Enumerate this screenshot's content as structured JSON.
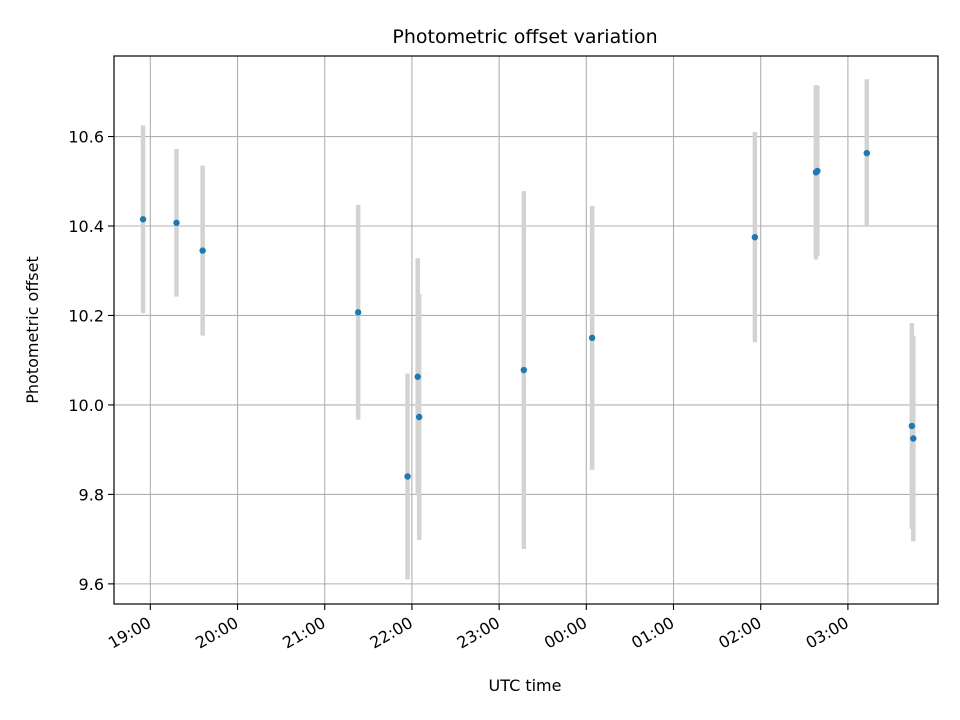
{
  "chart_data": {
    "type": "scatter",
    "title": "Photometric offset variation",
    "xlabel": "UTC time",
    "ylabel": "Photometric offset",
    "xlim": [
      "2024-01-01T18:35",
      "2024-01-02T04:02"
    ],
    "ylim": [
      9.555,
      10.78
    ],
    "grid": true,
    "x_ticks": [
      {
        "t": "2024-01-01T19:00",
        "label": "19:00"
      },
      {
        "t": "2024-01-01T20:00",
        "label": "20:00"
      },
      {
        "t": "2024-01-01T21:00",
        "label": "21:00"
      },
      {
        "t": "2024-01-01T22:00",
        "label": "22:00"
      },
      {
        "t": "2024-01-01T23:00",
        "label": "23:00"
      },
      {
        "t": "2024-01-02T00:00",
        "label": "00:00"
      },
      {
        "t": "2024-01-02T01:00",
        "label": "01:00"
      },
      {
        "t": "2024-01-02T02:00",
        "label": "02:00"
      },
      {
        "t": "2024-01-02T03:00",
        "label": "03:00"
      }
    ],
    "y_ticks": [
      {
        "v": 9.6,
        "label": "9.6"
      },
      {
        "v": 9.8,
        "label": "9.8"
      },
      {
        "v": 10.0,
        "label": "10.0"
      },
      {
        "v": 10.2,
        "label": "10.2"
      },
      {
        "v": 10.4,
        "label": "10.4"
      },
      {
        "v": 10.6,
        "label": "10.6"
      }
    ],
    "point_color": "#1f77b4",
    "errorbar_color": "#d3d3d3",
    "points": [
      {
        "t": "2024-01-01T18:55",
        "y": 10.415,
        "err": 0.21
      },
      {
        "t": "2024-01-01T19:18",
        "y": 10.407,
        "err": 0.165
      },
      {
        "t": "2024-01-01T19:36",
        "y": 10.345,
        "err": 0.19
      },
      {
        "t": "2024-01-01T21:23",
        "y": 10.207,
        "err": 0.24
      },
      {
        "t": "2024-01-01T21:57",
        "y": 9.84,
        "err": 0.23
      },
      {
        "t": "2024-01-01T22:04",
        "y": 10.063,
        "err": 0.265
      },
      {
        "t": "2024-01-01T22:05",
        "y": 9.973,
        "err": 0.275
      },
      {
        "t": "2024-01-01T23:17",
        "y": 10.078,
        "err": 0.4
      },
      {
        "t": "2024-01-02T00:04",
        "y": 10.15,
        "err": 0.295
      },
      {
        "t": "2024-01-02T01:56",
        "y": 10.375,
        "err": 0.235
      },
      {
        "t": "2024-01-02T02:38",
        "y": 10.52,
        "err": 0.195
      },
      {
        "t": "2024-01-02T02:39",
        "y": 10.523,
        "err": 0.19
      },
      {
        "t": "2024-01-02T03:13",
        "y": 10.563,
        "err": 0.165
      },
      {
        "t": "2024-01-02T03:44",
        "y": 9.953,
        "err": 0.23
      },
      {
        "t": "2024-01-02T03:45",
        "y": 9.925,
        "err": 0.23
      }
    ]
  }
}
